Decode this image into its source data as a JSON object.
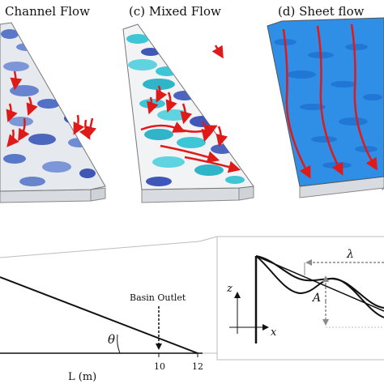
{
  "panels": {
    "b_title": "Channel Flow",
    "c_title": "(c) Mixed Flow",
    "d_title": "(d) Sheet flow"
  },
  "slope": {
    "basin_outlet_label": "Basin Outlet",
    "theta_symbol": "θ",
    "tick_10": "10",
    "tick_12": "12",
    "axis_label": "L (m)"
  },
  "inset": {
    "lambda_symbol": "λ",
    "amplitude_symbol": "A",
    "z_axis": "z",
    "x_axis": "x"
  },
  "colors": {
    "channel_bg": "#e6e9ee",
    "channel_patch": "#5a78c8",
    "channel_dark": "#3e56b4",
    "mixed_bg": "#f1f3f5",
    "mixed_cyan": "#3fc6d6",
    "mixed_dark": "#3f57b8",
    "sheet_bg": "#2f8ee6",
    "sheet_dark": "#1e6fcf",
    "arrow_red": "#e01919"
  }
}
